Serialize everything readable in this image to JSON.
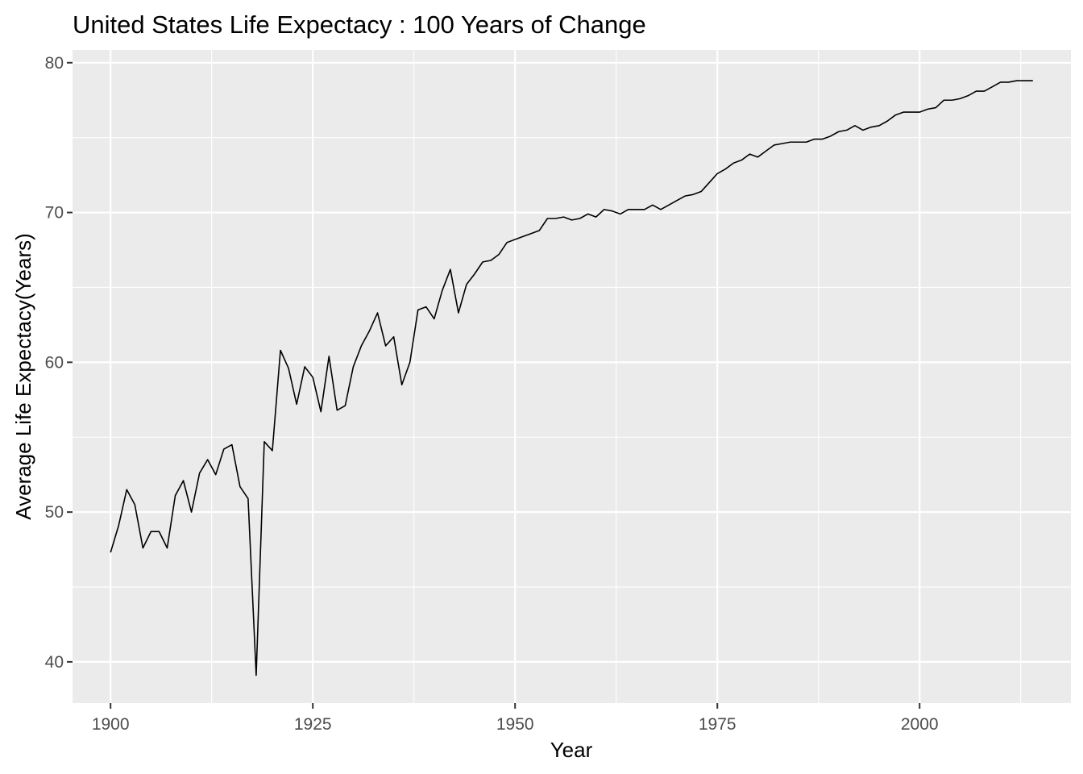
{
  "chart_data": {
    "type": "line",
    "title": "United States Life Expectacy : 100 Years of Change",
    "xlabel": "Year",
    "ylabel": "Average Life Expectacy(Years)",
    "xlim": [
      1895.3,
      2018.7
    ],
    "ylim": [
      37.25,
      80.85
    ],
    "x_ticks": [
      1900,
      1925,
      1950,
      1975,
      2000
    ],
    "x_tick_labels": [
      "1900",
      "1925",
      "1950",
      "1975",
      "2000"
    ],
    "y_ticks": [
      40,
      50,
      60,
      70,
      80
    ],
    "y_tick_labels": [
      "40",
      "50",
      "60",
      "70",
      "80"
    ],
    "grid": true,
    "legend": "none",
    "colors": {
      "panel": "#ebebeb",
      "grid": "#ffffff",
      "line": "#000000",
      "tick": "#4d4d4d"
    },
    "series": [
      {
        "x": [
          1900,
          1901,
          1902,
          1903,
          1904,
          1905,
          1906,
          1907,
          1908,
          1909,
          1910,
          1911,
          1912,
          1913,
          1914,
          1915,
          1916,
          1917,
          1918,
          1919,
          1920,
          1921,
          1922,
          1923,
          1924,
          1925,
          1926,
          1927,
          1928,
          1929,
          1930,
          1931,
          1932,
          1933,
          1934,
          1935,
          1936,
          1937,
          1938,
          1939,
          1940,
          1941,
          1942,
          1943,
          1944,
          1945,
          1946,
          1947,
          1948,
          1949,
          1950,
          1951,
          1952,
          1953,
          1954,
          1955,
          1956,
          1957,
          1958,
          1959,
          1960,
          1961,
          1962,
          1963,
          1964,
          1965,
          1966,
          1967,
          1968,
          1969,
          1970,
          1971,
          1972,
          1973,
          1974,
          1975,
          1976,
          1977,
          1978,
          1979,
          1980,
          1981,
          1982,
          1983,
          1984,
          1985,
          1986,
          1987,
          1988,
          1989,
          1990,
          1991,
          1992,
          1993,
          1994,
          1995,
          1996,
          1997,
          1998,
          1999,
          2000,
          2001,
          2002,
          2003,
          2004,
          2005,
          2006,
          2007,
          2008,
          2009,
          2010,
          2011,
          2012,
          2013,
          2014
        ],
        "values": [
          47.3,
          49.1,
          51.5,
          50.5,
          47.6,
          48.7,
          48.7,
          47.6,
          51.1,
          52.1,
          50.0,
          52.6,
          53.5,
          52.5,
          54.2,
          54.5,
          51.7,
          50.9,
          39.1,
          54.7,
          54.1,
          60.8,
          59.6,
          57.2,
          59.7,
          59.0,
          56.7,
          60.4,
          56.8,
          57.1,
          59.7,
          61.1,
          62.1,
          63.3,
          61.1,
          61.7,
          58.5,
          60.0,
          63.5,
          63.7,
          62.9,
          64.8,
          66.2,
          63.3,
          65.2,
          65.9,
          66.7,
          66.8,
          67.2,
          68.0,
          68.2,
          68.4,
          68.6,
          68.8,
          69.6,
          69.6,
          69.7,
          69.5,
          69.6,
          69.9,
          69.7,
          70.2,
          70.1,
          69.9,
          70.2,
          70.2,
          70.2,
          70.5,
          70.2,
          70.5,
          70.8,
          71.1,
          71.2,
          71.4,
          72.0,
          72.6,
          72.9,
          73.3,
          73.5,
          73.9,
          73.7,
          74.1,
          74.5,
          74.6,
          74.7,
          74.7,
          74.7,
          74.9,
          74.9,
          75.1,
          75.4,
          75.5,
          75.8,
          75.5,
          75.7,
          75.8,
          76.1,
          76.5,
          76.7,
          76.7,
          76.7,
          76.9,
          77.0,
          77.5,
          77.5,
          77.6,
          77.8,
          78.1,
          78.1,
          78.4,
          78.7,
          78.7,
          78.8,
          78.8,
          78.8
        ]
      }
    ]
  }
}
